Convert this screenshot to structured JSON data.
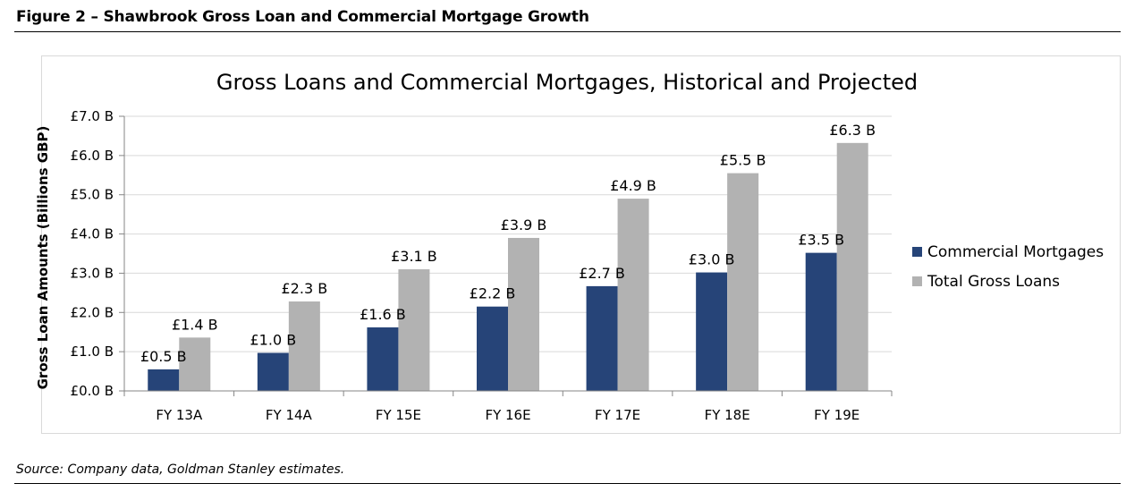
{
  "figure": {
    "title": "Figure 2 – Shawbrook Gross Loan and Commercial Mortgage Growth",
    "source": "Source: Company data, Goldman Stanley estimates."
  },
  "chart_data": {
    "type": "bar",
    "title": "Gross Loans and Commercial Mortgages, Historical and Projected",
    "xlabel": "",
    "ylabel": "Gross Loan Amounts (Billions GBP)",
    "categories": [
      "FY 13A",
      "FY 14A",
      "FY 15E",
      "FY 16E",
      "FY 17E",
      "FY 18E",
      "FY 19E"
    ],
    "series": [
      {
        "name": "Commercial Mortgages",
        "color": "#264478",
        "values": [
          0.55,
          0.97,
          1.62,
          2.15,
          2.67,
          3.02,
          3.52
        ],
        "labels": [
          "£0.5 B",
          "£1.0 B",
          "£1.6 B",
          "£2.2 B",
          "£2.7 B",
          "£3.0 B",
          "£3.5 B"
        ]
      },
      {
        "name": "Total Gross Loans",
        "color": "#b2b2b2",
        "values": [
          1.36,
          2.28,
          3.1,
          3.9,
          4.9,
          5.55,
          6.32
        ],
        "labels": [
          "£1.4 B",
          "£2.3 B",
          "£3.1 B",
          "£3.9 B",
          "£4.9 B",
          "£5.5 B",
          "£6.3 B"
        ]
      }
    ],
    "ylim": [
      0,
      7
    ],
    "yticks": [
      0,
      1,
      2,
      3,
      4,
      5,
      6,
      7
    ],
    "ytick_labels": [
      "£0.0 B",
      "£1.0 B",
      "£2.0 B",
      "£3.0 B",
      "£4.0 B",
      "£5.0 B",
      "£6.0 B",
      "£7.0 B"
    ],
    "grid": true,
    "gridline_color": "#d9d9d9",
    "legend_placement": "right"
  }
}
